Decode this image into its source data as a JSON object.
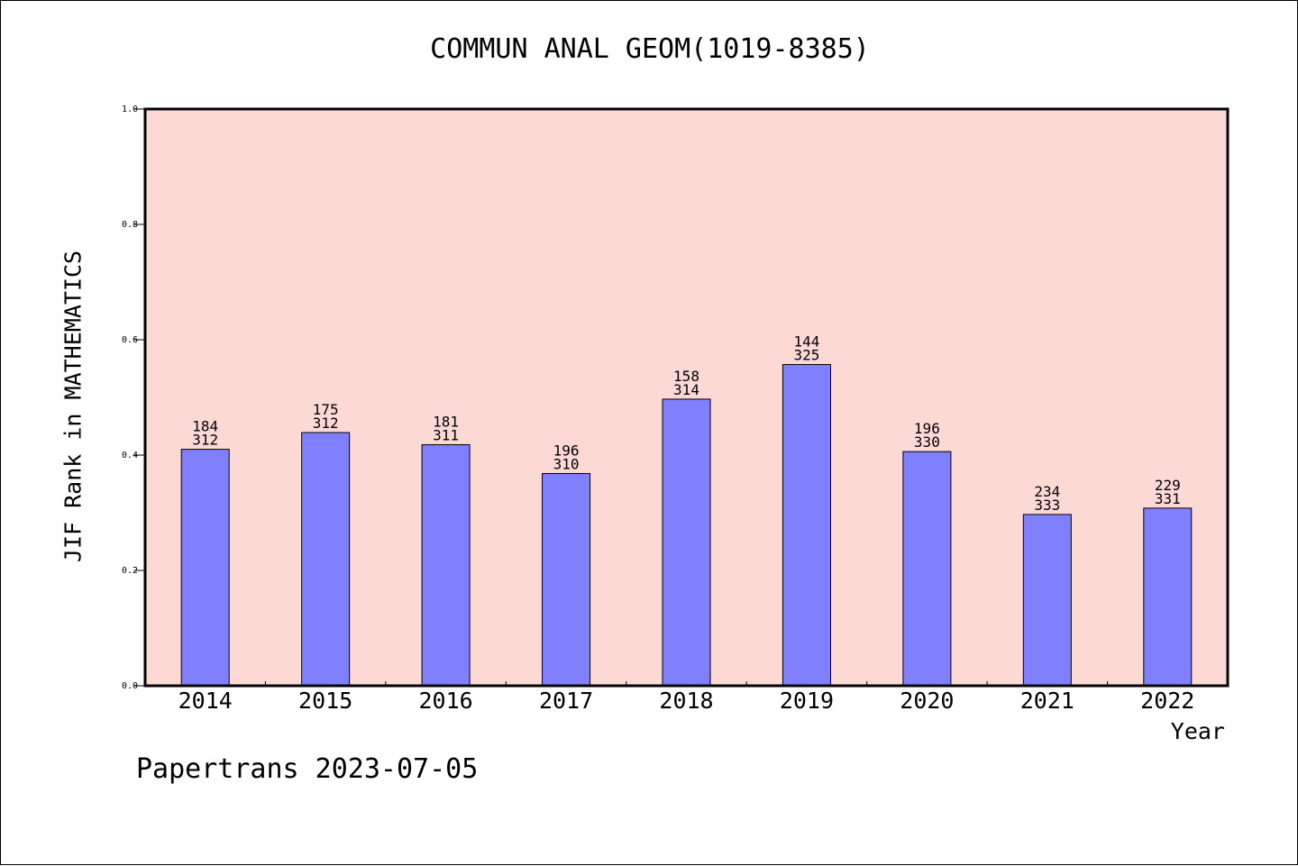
{
  "chart_data": {
    "type": "bar",
    "title": "COMMUN ANAL GEOM(1019-8385)",
    "xlabel": "Year",
    "ylabel": "JIF Rank in MATHEMATICS",
    "ylim": [
      0,
      1.0
    ],
    "yticks": [
      "0.0",
      "0.2",
      "0.4",
      "0.6",
      "0.8",
      "1.0"
    ],
    "categories": [
      "2014",
      "2015",
      "2016",
      "2017",
      "2018",
      "2019",
      "2020",
      "2021",
      "2022"
    ],
    "values": [
      0.41,
      0.439,
      0.418,
      0.368,
      0.497,
      0.557,
      0.406,
      0.297,
      0.308
    ],
    "labels_top": [
      "184",
      "175",
      "181",
      "196",
      "158",
      "144",
      "196",
      "234",
      "229"
    ],
    "labels_bottom": [
      "312",
      "312",
      "311",
      "310",
      "314",
      "325",
      "330",
      "333",
      "331"
    ],
    "grid": false,
    "colors": {
      "plot_background": "#fdd9d6",
      "bar_fill": "#8080ff",
      "bar_stroke": "#000000"
    }
  },
  "footer": {
    "text": "Papertrans 2023-07-05"
  }
}
